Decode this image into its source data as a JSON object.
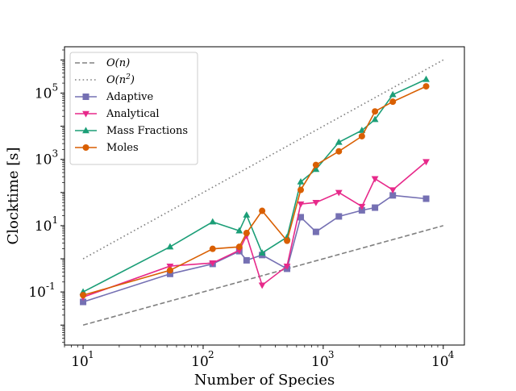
{
  "chart_data": {
    "type": "line",
    "xlabel": "Number of Species",
    "ylabel": "Clocktime [s]",
    "xscale": "log",
    "yscale": "log",
    "xlim": [
      7,
      15000
    ],
    "ylim": [
      0.0025,
      2500000
    ],
    "legend_position": "upper-left",
    "x_ticks": [
      {
        "base": "10",
        "exp": "1",
        "value": 10
      },
      {
        "base": "10",
        "exp": "2",
        "value": 100
      },
      {
        "base": "10",
        "exp": "3",
        "value": 1000
      },
      {
        "base": "10",
        "exp": "4",
        "value": 10000
      }
    ],
    "y_ticks": [
      {
        "base": "10",
        "exp": "-1",
        "value": 0.1
      },
      {
        "base": "10",
        "exp": "1",
        "value": 10
      },
      {
        "base": "10",
        "exp": "3",
        "value": 1000
      },
      {
        "base": "10",
        "exp": "5",
        "value": 100000
      }
    ],
    "reference_lines": [
      {
        "name": "O(n)",
        "label_main": "O(n)",
        "label_sup": "",
        "style": "dashed",
        "color": "#808080",
        "x": [
          10,
          10000
        ],
        "y": [
          0.01,
          10
        ]
      },
      {
        "name": "O(n^2)",
        "label_main": "O(n",
        "label_sup": "2",
        "style": "dotted",
        "color": "#808080",
        "x": [
          10,
          10000
        ],
        "y": [
          1,
          1000000
        ]
      }
    ],
    "series": [
      {
        "name": "Adaptive",
        "color": "#7570b3",
        "marker": "square",
        "x": [
          10,
          53,
          120,
          200,
          230,
          310,
          500,
          650,
          870,
          1350,
          2100,
          2700,
          3800,
          7200
        ],
        "y": [
          0.05,
          0.35,
          0.7,
          1.7,
          0.9,
          1.3,
          0.5,
          18,
          6.5,
          19,
          29,
          35,
          82,
          65
        ]
      },
      {
        "name": "Analytical",
        "color": "#e7298a",
        "marker": "triangle-down",
        "x": [
          10,
          53,
          120,
          200,
          230,
          310,
          500,
          650,
          870,
          1350,
          2100,
          2700,
          3800,
          7200
        ],
        "y": [
          0.07,
          0.6,
          0.75,
          1.8,
          5,
          0.16,
          0.6,
          45,
          50,
          100,
          38,
          260,
          120,
          850
        ]
      },
      {
        "name": "Mass Fractions",
        "color": "#1b9e77",
        "marker": "triangle-up",
        "x": [
          10,
          53,
          120,
          200,
          230,
          310,
          500,
          650,
          870,
          1350,
          2100,
          2700,
          3800,
          7200
        ],
        "y": [
          0.1,
          2.3,
          13,
          7,
          21,
          1.5,
          4.5,
          210,
          500,
          3300,
          7500,
          16000,
          90000,
          260000
        ]
      },
      {
        "name": "Moles",
        "color": "#d95f02",
        "marker": "circle",
        "x": [
          10,
          53,
          120,
          200,
          230,
          310,
          500,
          650,
          870,
          1350,
          2100,
          2700,
          3800,
          7200
        ],
        "y": [
          0.08,
          0.45,
          2,
          2.3,
          6,
          28,
          3.5,
          120,
          680,
          1750,
          5000,
          28000,
          55000,
          160000
        ]
      }
    ]
  }
}
